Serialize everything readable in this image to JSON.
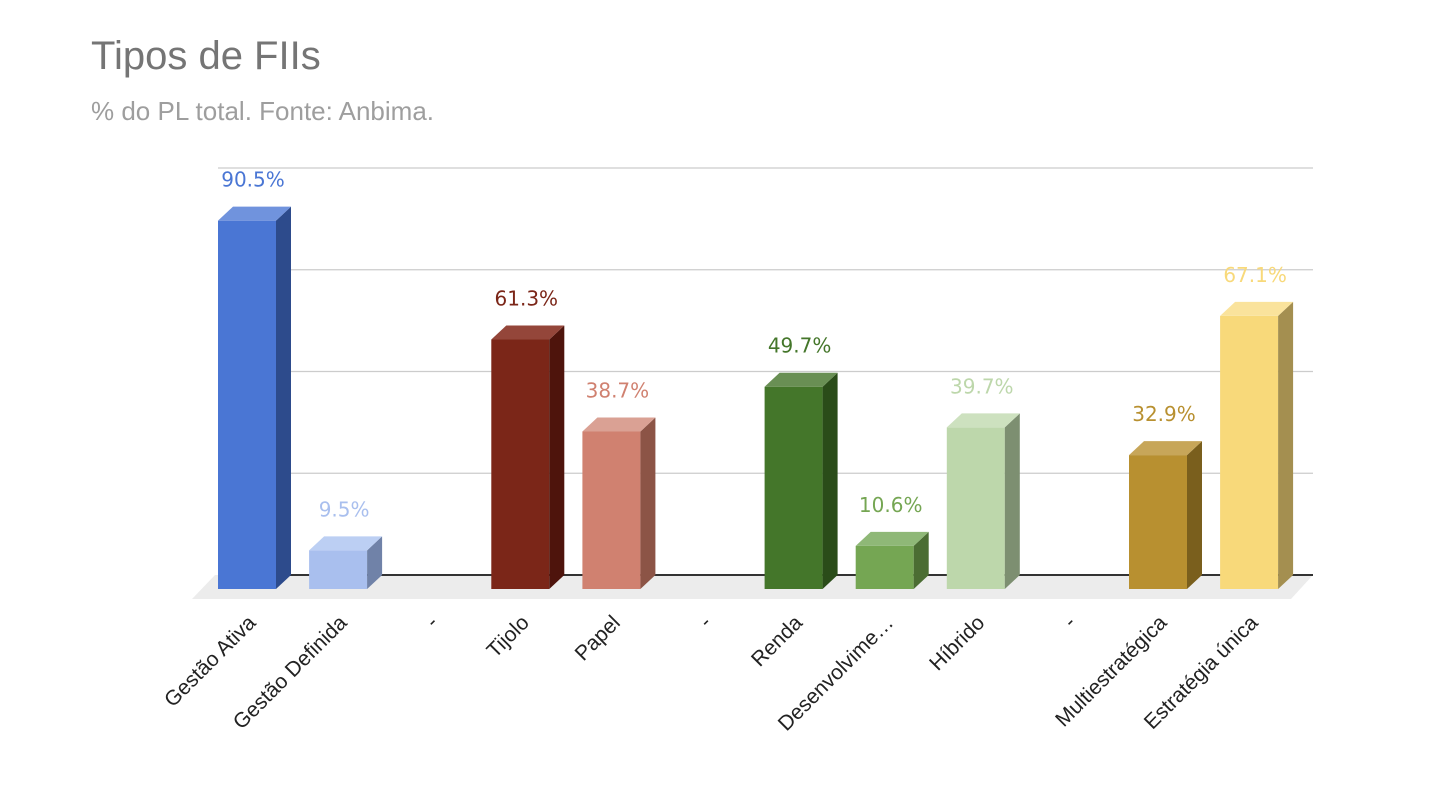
{
  "title": "Tipos de FIIs",
  "subtitle": "% do PL total. Fonte: Anbima.",
  "chart_data": {
    "type": "bar",
    "title": "Tipos de FIIs",
    "subtitle": "% do PL total. Fonte: Anbima.",
    "style": "3d",
    "xlabel": "",
    "ylabel": "",
    "ylim": [
      0,
      100
    ],
    "grid": true,
    "legend": "none",
    "categories": [
      "Gestão Ativa",
      "Gestão Definida",
      "-",
      "Tijolo",
      "Papel",
      "-",
      "Renda",
      "Desenvolvime…",
      "Híbrido",
      "-",
      "Multiestratégica",
      "Estratégia única"
    ],
    "values": [
      90.5,
      9.5,
      null,
      61.3,
      38.7,
      null,
      49.7,
      10.6,
      39.7,
      null,
      32.9,
      67.1
    ],
    "data_labels": [
      "90.5%",
      "9.5%",
      "",
      "61.3%",
      "38.7%",
      "",
      "49.7%",
      "10.6%",
      "39.7%",
      "",
      "32.9%",
      "67.1%"
    ],
    "colors": [
      "#4a76d4",
      "#a9bfee",
      "",
      "#7b2618",
      "#d08170",
      "",
      "#44762a",
      "#75a653",
      "#bdd7ab",
      "",
      "#b89030",
      "#f8d97a"
    ],
    "label_colors": [
      "#4a76d4",
      "#a9bfee",
      "",
      "#7b2618",
      "#d08170",
      "",
      "#44762a",
      "#75a653",
      "#bdd7ab",
      "",
      "#b89030",
      "#f8d97a"
    ],
    "side_colors": [
      "#2d4b8c",
      "#7082a8",
      "",
      "#4e140c",
      "#8c5446",
      "",
      "#2a4c19",
      "#4b6d33",
      "#7d8f71",
      "",
      "#7a5f1d",
      "#a48f50"
    ],
    "top_colors": [
      "#7093dd",
      "#bccff3",
      "",
      "#94463a",
      "#daa194",
      "",
      "#698f54",
      "#8fb877",
      "#cde1bf",
      "",
      "#c7a659",
      "#fae39c"
    ]
  }
}
